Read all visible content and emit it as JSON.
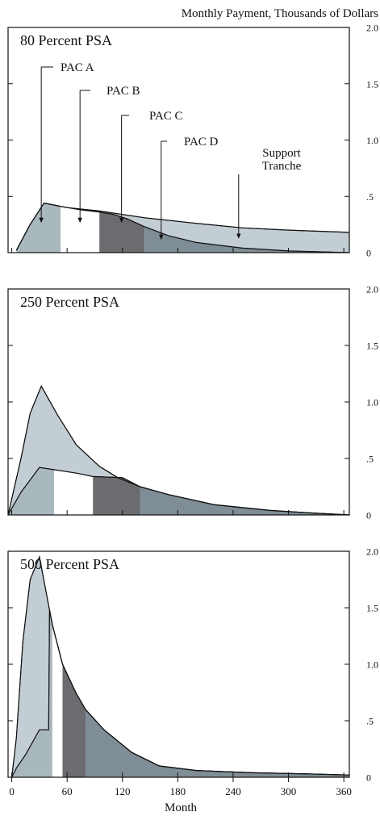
{
  "chart_data": {
    "type": "area",
    "y_axis_title": "Monthly Payment, Thousands of Dollars",
    "x_axis_title": "Month",
    "x_ticks": [
      0,
      60,
      120,
      180,
      240,
      300,
      360
    ],
    "x_tick_labels": [
      "0",
      "60",
      "120",
      "180",
      "240",
      "300",
      "360"
    ],
    "xlim": [
      -4,
      366
    ],
    "ylim": [
      0,
      2.0
    ],
    "y_ticks": [
      0,
      0.5,
      1.0,
      1.5,
      2.0
    ],
    "y_tick_labels": [
      "0",
      ".5",
      "1.0",
      "1.5",
      "2.0"
    ],
    "colors": {
      "pac_a": "#a9b8bc",
      "pac_b": "#ffffff",
      "pac_c": "#6c6c70",
      "pac_d": "#7f8e96",
      "support": "#c3cdd4",
      "line": "#111111"
    },
    "panels": [
      {
        "title": "80 Percent PSA",
        "annotations": [
          "PAC A",
          "PAC B",
          "PAC C",
          "PAC D",
          "Support\nTranche"
        ],
        "pac_bounds": [
          0,
          53,
          95,
          144,
          366
        ],
        "pac_boundary": [
          [
            5,
            0.02
          ],
          [
            20,
            0.25
          ],
          [
            35,
            0.44
          ],
          [
            53,
            0.41
          ],
          [
            75,
            0.38
          ],
          [
            95,
            0.36
          ],
          [
            110,
            0.34
          ],
          [
            125,
            0.3
          ],
          [
            144,
            0.23
          ],
          [
            170,
            0.15
          ],
          [
            200,
            0.09
          ],
          [
            250,
            0.04
          ],
          [
            300,
            0.015
          ],
          [
            366,
            0.0
          ]
        ],
        "total": [
          [
            5,
            0.02
          ],
          [
            20,
            0.25
          ],
          [
            35,
            0.44
          ],
          [
            60,
            0.4
          ],
          [
            95,
            0.37
          ],
          [
            144,
            0.31
          ],
          [
            200,
            0.26
          ],
          [
            250,
            0.22
          ],
          [
            300,
            0.2
          ],
          [
            366,
            0.18
          ]
        ]
      },
      {
        "title": "250 Percent PSA",
        "annotations": [],
        "pac_bounds": [
          -4,
          46,
          88,
          139,
          366
        ],
        "pac_boundary": [
          [
            -4,
            0.0
          ],
          [
            10,
            0.2
          ],
          [
            30,
            0.42
          ],
          [
            46,
            0.4
          ],
          [
            70,
            0.37
          ],
          [
            88,
            0.34
          ],
          [
            120,
            0.33
          ],
          [
            139,
            0.25
          ],
          [
            170,
            0.18
          ],
          [
            220,
            0.09
          ],
          [
            280,
            0.04
          ],
          [
            330,
            0.015
          ],
          [
            366,
            0.0
          ]
        ],
        "total": [
          [
            -4,
            0.0
          ],
          [
            10,
            0.5
          ],
          [
            20,
            0.9
          ],
          [
            32,
            1.14
          ],
          [
            50,
            0.88
          ],
          [
            70,
            0.62
          ],
          [
            95,
            0.43
          ],
          [
            115,
            0.33
          ],
          [
            139,
            0.25
          ],
          [
            170,
            0.18
          ],
          [
            220,
            0.09
          ],
          [
            280,
            0.04
          ],
          [
            330,
            0.015
          ],
          [
            366,
            0.0
          ]
        ]
      },
      {
        "title": "500 Percent PSA",
        "annotations": [],
        "pac_bounds": [
          0,
          44,
          55,
          80,
          366
        ],
        "pac_boundary": [
          [
            0,
            0.0
          ],
          [
            5,
            0.08
          ],
          [
            15,
            0.2
          ],
          [
            30,
            0.42
          ],
          [
            40,
            0.42
          ],
          [
            41,
            1.48
          ],
          [
            44,
            1.35
          ],
          [
            55,
            1.0
          ],
          [
            70,
            0.74
          ],
          [
            80,
            0.6
          ],
          [
            100,
            0.42
          ],
          [
            130,
            0.22
          ],
          [
            160,
            0.1
          ],
          [
            200,
            0.06
          ],
          [
            260,
            0.04
          ],
          [
            320,
            0.03
          ],
          [
            366,
            0.02
          ]
        ],
        "total": [
          [
            0,
            0.0
          ],
          [
            5,
            0.35
          ],
          [
            12,
            1.2
          ],
          [
            20,
            1.75
          ],
          [
            30,
            1.95
          ],
          [
            41,
            1.48
          ],
          [
            44,
            1.35
          ],
          [
            55,
            1.0
          ],
          [
            70,
            0.74
          ],
          [
            80,
            0.6
          ],
          [
            100,
            0.42
          ],
          [
            130,
            0.22
          ],
          [
            160,
            0.1
          ],
          [
            200,
            0.06
          ],
          [
            260,
            0.04
          ],
          [
            320,
            0.03
          ],
          [
            366,
            0.02
          ]
        ]
      }
    ]
  }
}
